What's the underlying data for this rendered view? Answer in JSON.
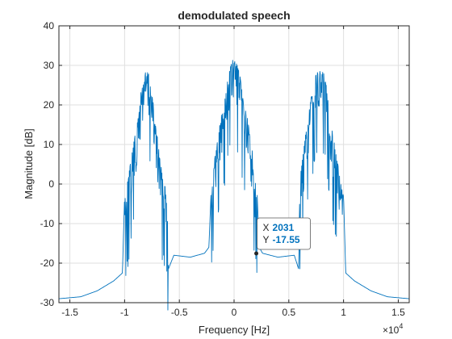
{
  "chart_data": {
    "type": "line",
    "title": "demodulated speech",
    "xlabel": "Frequency [Hz]",
    "ylabel": "Magnitude [dB]",
    "x_exponent_label": "×10",
    "x_exponent_power": "4",
    "xlim": [
      -16000,
      16000
    ],
    "ylim": [
      -30,
      40
    ],
    "x_ticks": [
      -15000,
      -10000,
      -5000,
      0,
      5000,
      10000,
      15000
    ],
    "x_tick_labels": [
      "-1.5",
      "-1",
      "-0.5",
      "0",
      "0.5",
      "1",
      "1.5"
    ],
    "y_ticks": [
      -30,
      -20,
      -10,
      0,
      10,
      20,
      30,
      40
    ],
    "y_tick_labels": [
      "-30",
      "-20",
      "-10",
      "0",
      "10",
      "20",
      "30",
      "40"
    ],
    "grid": true,
    "line_color": "#0072bd",
    "series": [
      {
        "envelope_x": [
          -16000,
          -14000,
          -12500,
          -11000,
          -10200,
          -10000,
          -9700,
          -9200,
          -8800,
          -8500,
          -8200,
          -8000,
          -7800,
          -7500,
          -7100,
          -6600,
          -6100,
          -6000,
          -5500,
          -4000,
          -2700,
          -2300,
          -2100,
          -1700,
          -1200,
          -800,
          -500,
          -300,
          -100,
          0,
          100,
          300,
          500,
          800,
          1200,
          1700,
          2100,
          2300,
          2600,
          4000,
          5500,
          5900,
          6000,
          6100,
          6600,
          7100,
          7500,
          7800,
          8000,
          8200,
          8500,
          8800,
          9200,
          9700,
          10000,
          10200,
          11000,
          12500,
          14000,
          16000
        ],
        "envelope_y": [
          -29,
          -28.5,
          -27,
          -24.5,
          -22.5,
          -3,
          1,
          10,
          16,
          24,
          28,
          28.5,
          28,
          23,
          14,
          3,
          -2,
          -21.5,
          -18,
          -18.5,
          -17.5,
          -16,
          -2,
          8,
          17,
          22,
          28,
          30,
          31.5,
          31,
          31.5,
          30,
          28,
          22,
          17,
          8,
          -2,
          -16,
          -17.5,
          -18.5,
          -18,
          -21.5,
          -2,
          3,
          14,
          23,
          28,
          28.5,
          28.5,
          28,
          24,
          16,
          10,
          1,
          -3,
          -22.5,
          -24.5,
          -27,
          -28.5,
          -29
        ]
      }
    ],
    "datatip": {
      "x_label": "X",
      "x_value": "2031",
      "y_label": "Y",
      "y_value": "-17.55",
      "x": 2031,
      "y": -17.55
    }
  }
}
